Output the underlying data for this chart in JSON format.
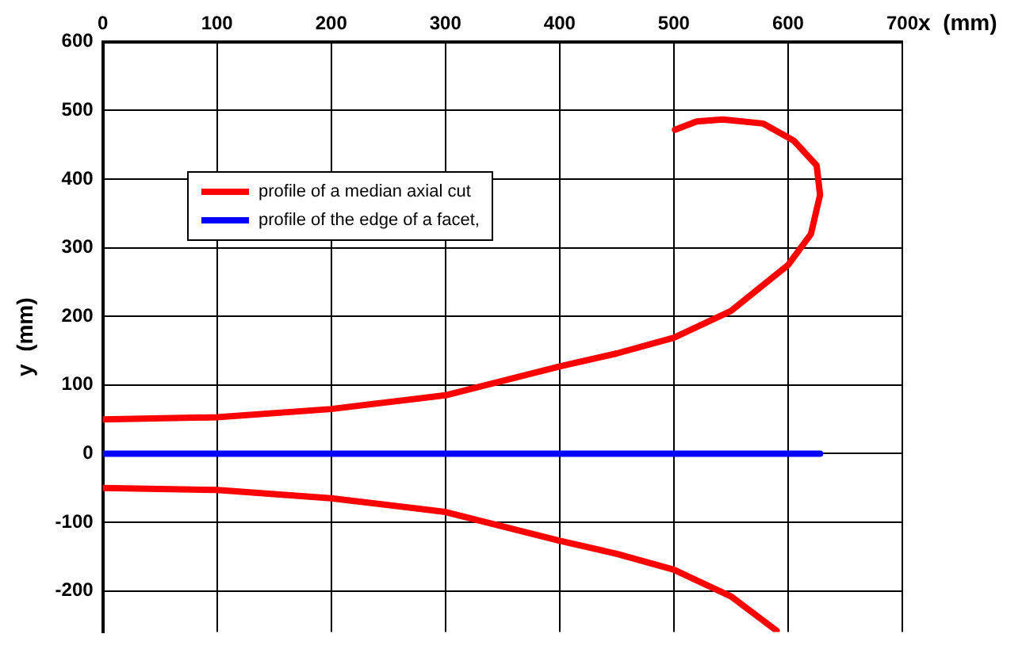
{
  "chart_data": {
    "type": "line",
    "xlabel": "x  (mm)",
    "ylabel": "y  (mm)",
    "xlim": [
      0,
      700
    ],
    "xticks": [
      0,
      100,
      200,
      300,
      400,
      500,
      600,
      700
    ],
    "ylim": [
      -260,
      600
    ],
    "yticks": [
      -200,
      -100,
      0,
      100,
      200,
      300,
      400,
      500,
      600
    ],
    "grid": true,
    "legend": "top left",
    "marker": "none",
    "line_style": "solid",
    "series": [
      {
        "name": "profile of a median axial cut",
        "color": "#ff0000",
        "x": [
          0,
          100,
          200,
          300,
          400,
          450,
          500,
          550,
          600,
          620,
          628,
          625,
          605,
          578,
          543,
          520,
          501
        ],
        "values": [
          50,
          53,
          65,
          85,
          127,
          146,
          169,
          208,
          275,
          320,
          377,
          420,
          456,
          481,
          487,
          484,
          472
        ]
      },
      {
        "name": "profile of the edge of a facet,",
        "color": "#0000ff",
        "x": [
          0,
          628
        ],
        "values": [
          0,
          0
        ]
      },
      {
        "color": "#ff0000",
        "x": [
          0,
          100,
          200,
          300,
          400,
          450,
          500,
          550,
          590
        ],
        "values": [
          -50,
          -53,
          -65,
          -85,
          -127,
          -146,
          -169,
          -208,
          -258
        ]
      }
    ]
  }
}
